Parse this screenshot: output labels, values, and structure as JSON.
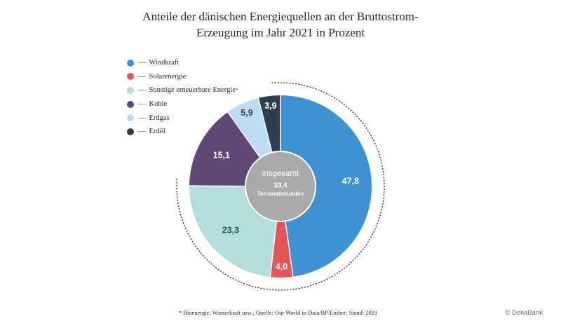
{
  "chart_data": {
    "type": "pie",
    "variant": "donut",
    "title_line1": "Anteile der dänischen Energiequellen an der Bruttostrom-",
    "title_line2": "Erzeugung im Jahr 2021 in Prozent",
    "center_label": "insgesamt",
    "center_value": "33,4",
    "center_unit": "Terrawattstunden",
    "legend_placement": "top-left",
    "slices": [
      {
        "name": "Windkraft",
        "value": 47.8,
        "label": "47,8",
        "color": "#3f92d2"
      },
      {
        "name": "Solarenergie",
        "value": 4.0,
        "label": "4,0",
        "color": "#e6545a"
      },
      {
        "name": "Sonstige erneuerbare Energie",
        "legend_suffix": "*",
        "value": 23.3,
        "label": "23,3",
        "color": "#b4dedb"
      },
      {
        "name": "Kohle",
        "value": 15.1,
        "label": "15,1",
        "color": "#5f4776"
      },
      {
        "name": "Erdgas",
        "value": 5.9,
        "label": "5,9",
        "color": "#bcdcf3"
      },
      {
        "name": "Erdöl",
        "value": 3.9,
        "label": "3,9",
        "color": "#2f3e4d"
      }
    ],
    "center_color": "#a9a9a9",
    "footnote": "* Bioenergie, Wasserkraft usw.; Quelle: Our World in Data/BP/Ember; Stand: 2021"
  },
  "credit": "© DekaBank"
}
